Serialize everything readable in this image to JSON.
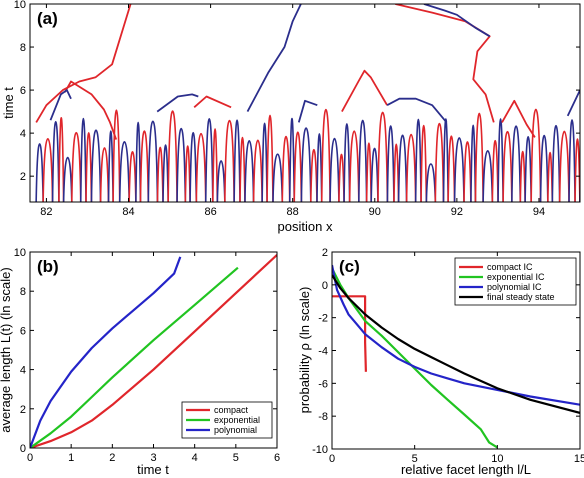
{
  "chart_data": [
    {
      "type": "line",
      "panel_label": "(a)",
      "xlabel": "position x",
      "ylabel": "time t",
      "xlim": [
        81.6,
        95.0
      ],
      "ylim": [
        0.8,
        10
      ],
      "x_ticks": [
        82,
        84,
        86,
        88,
        90,
        92,
        94
      ],
      "y_ticks": [
        2,
        4,
        6,
        8,
        10
      ],
      "colors": [
        "#e0262b",
        "#2b2e8c"
      ],
      "series": [
        {
          "color": "#e0262b",
          "x": [
            81.75,
            82.0,
            82.4,
            82.8,
            83.2,
            83.6,
            84.05
          ],
          "y": [
            4.5,
            5.3,
            6.0,
            6.4,
            6.6,
            7.2,
            10.0
          ]
        },
        {
          "color": "#e0262b",
          "x": [
            82.45,
            82.6,
            83.1,
            83.4,
            83.55,
            83.7
          ],
          "y": [
            5.9,
            6.4,
            5.8,
            5.1,
            4.5,
            3.7
          ]
        },
        {
          "color": "#2b2e8c",
          "x": [
            82.1,
            82.35,
            82.5,
            82.6
          ],
          "y": [
            4.6,
            5.8,
            6.0,
            5.6
          ]
        },
        {
          "color": "#2b2e8c",
          "x": [
            84.7,
            85.2,
            85.55,
            85.7
          ],
          "y": [
            5.0,
            5.7,
            5.8,
            5.7
          ]
        },
        {
          "color": "#e0262b",
          "x": [
            85.6,
            85.9,
            86.5
          ],
          "y": [
            5.2,
            5.7,
            5.2
          ]
        },
        {
          "color": "#2b2e8c",
          "x": [
            86.9,
            87.4,
            87.8,
            88.0,
            88.2
          ],
          "y": [
            5.0,
            6.8,
            8.0,
            9.2,
            10.0
          ]
        },
        {
          "color": "#2b2e8c",
          "x": [
            88.15,
            88.3,
            88.6
          ],
          "y": [
            4.5,
            5.5,
            5.3
          ]
        },
        {
          "color": "#e0262b",
          "x": [
            89.2,
            89.6,
            89.75,
            89.9,
            90.3
          ],
          "y": [
            5.0,
            6.4,
            6.9,
            6.6,
            5.3
          ]
        },
        {
          "color": "#2b2e8c",
          "x": [
            90.3,
            90.6,
            91.0,
            91.4,
            91.75
          ],
          "y": [
            5.3,
            5.6,
            5.6,
            5.3,
            4.5
          ]
        },
        {
          "color": "#e0262b",
          "x": [
            90.5,
            91.4,
            92.2,
            92.8,
            92.5,
            92.4,
            92.7,
            92.9
          ],
          "y": [
            10.0,
            9.6,
            9.2,
            8.5,
            7.8,
            6.5,
            5.8,
            4.5
          ]
        },
        {
          "color": "#2b2e8c",
          "x": [
            91.2,
            91.7,
            92.0,
            92.45,
            92.8
          ],
          "y": [
            10.0,
            9.7,
            9.5,
            8.9,
            8.5
          ]
        },
        {
          "color": "#e0262b",
          "x": [
            93.1,
            93.4,
            93.7,
            93.9
          ],
          "y": [
            4.5,
            5.5,
            4.4,
            3.8
          ]
        },
        {
          "color": "#2b2e8c",
          "x": [
            94.7,
            94.9,
            95.0
          ],
          "y": [
            4.8,
            5.6,
            6.0
          ]
        }
      ]
    },
    {
      "type": "line",
      "panel_label": "(b)",
      "xlabel": "time t",
      "ylabel": "average length L(t)  (ln scale)",
      "xlim": [
        0,
        6
      ],
      "ylim": [
        0,
        10
      ],
      "x_ticks": [
        0,
        1,
        2,
        3,
        4,
        5,
        6
      ],
      "y_ticks": [
        0,
        2,
        4,
        6,
        8,
        10
      ],
      "legend_position": "bottom-right",
      "series": [
        {
          "name": "compact",
          "color": "#e0262b",
          "x": [
            0,
            0.5,
            1.0,
            1.5,
            2.0,
            3.0,
            4.0,
            5.0,
            6.0
          ],
          "y": [
            0,
            0.35,
            0.8,
            1.4,
            2.2,
            4.0,
            5.95,
            7.9,
            9.85
          ]
        },
        {
          "name": "exponential",
          "color": "#21c421",
          "x": [
            0,
            0.5,
            1.0,
            1.5,
            2.0,
            3.0,
            4.0,
            5.05
          ],
          "y": [
            0,
            0.75,
            1.6,
            2.6,
            3.6,
            5.5,
            7.3,
            9.2
          ]
        },
        {
          "name": "polynomial",
          "color": "#2424c8",
          "x": [
            0,
            0.25,
            0.5,
            1.0,
            1.5,
            2.0,
            2.5,
            3.0,
            3.5,
            3.65
          ],
          "y": [
            0,
            1.4,
            2.4,
            3.9,
            5.1,
            6.1,
            7.0,
            7.9,
            8.9,
            9.75
          ]
        }
      ]
    },
    {
      "type": "line",
      "panel_label": "(c)",
      "xlabel": "relative facet length  l/L",
      "ylabel": "probability ρ  (ln scale)",
      "xlim": [
        0,
        15
      ],
      "ylim": [
        -10,
        2
      ],
      "x_ticks": [
        0,
        5,
        10,
        15
      ],
      "y_ticks": [
        -10,
        -8,
        -6,
        -4,
        -2,
        0,
        2
      ],
      "legend_position": "top-right",
      "series": [
        {
          "name": "compact IC",
          "color": "#e0262b",
          "x": [
            0.0,
            2.0,
            2.0,
            2.05
          ],
          "y": [
            -0.7,
            -0.7,
            -3.5,
            -5.3
          ]
        },
        {
          "name": "exponential IC",
          "color": "#21c421",
          "x": [
            0.0,
            0.5,
            1.0,
            2.0,
            3.0,
            4.0,
            5.0,
            6.0,
            7.0,
            8.0,
            9.0,
            9.5,
            10.0
          ],
          "y": [
            1.0,
            0.0,
            -0.8,
            -2.2,
            -3.1,
            -4.1,
            -5.1,
            -6.1,
            -7.0,
            -7.9,
            -8.8,
            -9.6,
            -9.9
          ]
        },
        {
          "name": "polynomial IC",
          "color": "#2424c8",
          "x": [
            0.0,
            0.3,
            0.7,
            1.0,
            1.5,
            2.0,
            3.0,
            4.0,
            5.0,
            6.0,
            7.0,
            8.0,
            10.0,
            12.0,
            15.0
          ],
          "y": [
            1.2,
            -0.3,
            -1.2,
            -1.8,
            -2.4,
            -3.0,
            -3.8,
            -4.5,
            -5.0,
            -5.4,
            -5.7,
            -6.0,
            -6.4,
            -6.8,
            -7.3
          ]
        },
        {
          "name": "final steady state",
          "color": "#000000",
          "x": [
            0.0,
            0.5,
            1.0,
            2.0,
            3.0,
            4.0,
            5.0,
            6.0,
            7.0,
            8.0,
            10.0,
            12.0,
            15.0
          ],
          "y": [
            0.6,
            -0.2,
            -0.8,
            -1.8,
            -2.6,
            -3.3,
            -3.9,
            -4.4,
            -4.9,
            -5.4,
            -6.3,
            -7.0,
            -7.8
          ]
        }
      ]
    }
  ]
}
